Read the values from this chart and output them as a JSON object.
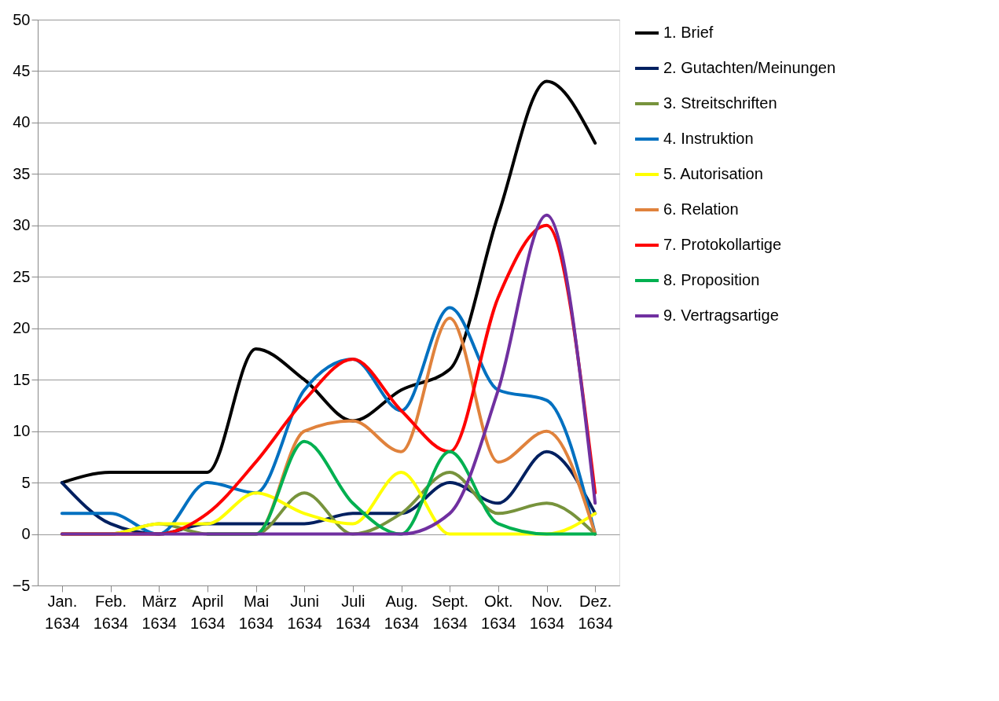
{
  "chart_data": {
    "type": "line",
    "categories": [
      "Jan. 1634",
      "Feb. 1634",
      "März 1634",
      "April 1634",
      "Mai 1634",
      "Juni 1634",
      "Juli 1634",
      "Aug. 1634",
      "Sept. 1634",
      "Okt. 1634",
      "Nov. 1634",
      "Dez. 1634"
    ],
    "series": [
      {
        "name": "1. Brief",
        "color": "#000000",
        "values": [
          5,
          6,
          6,
          6,
          18,
          15,
          11,
          14,
          16,
          31,
          44,
          38
        ]
      },
      {
        "name": "2. Gutachten/Meinungen",
        "color": "#002060",
        "values": [
          5,
          1,
          0,
          1,
          1,
          1,
          2,
          2,
          5,
          3,
          8,
          2
        ]
      },
      {
        "name": "3. Streitschriften",
        "color": "#77933c",
        "values": [
          0,
          0,
          1,
          0,
          0,
          4,
          0,
          2,
          6,
          2,
          3,
          0
        ]
      },
      {
        "name": "4. Instruktion",
        "color": "#0070c0",
        "values": [
          2,
          2,
          0,
          5,
          4,
          14,
          17,
          12,
          22,
          14,
          13,
          0
        ]
      },
      {
        "name": "5. Autorisation",
        "color": "#ffff00",
        "values": [
          0,
          0,
          1,
          1,
          4,
          2,
          1,
          6,
          0,
          0,
          0,
          2
        ]
      },
      {
        "name": "6. Relation",
        "color": "#e0823c",
        "values": [
          null,
          null,
          null,
          0,
          0,
          10,
          11,
          8,
          21,
          7,
          10,
          0
        ]
      },
      {
        "name": "7. Protokollartige",
        "color": "#ff0000",
        "values": [
          0,
          0,
          0,
          2,
          7,
          13,
          17,
          12,
          8,
          23,
          30,
          4
        ]
      },
      {
        "name": "8. Proposition",
        "color": "#00b050",
        "values": [
          null,
          null,
          null,
          0,
          0,
          9,
          3,
          0,
          8,
          1,
          0,
          0
        ]
      },
      {
        "name": "9. Vertragsartige",
        "color": "#7030a0",
        "values": [
          0,
          0,
          0,
          0,
          0,
          0,
          0,
          0,
          2,
          14,
          31,
          3
        ]
      }
    ],
    "ylim": [
      -5,
      50
    ],
    "yticks": [
      -5,
      0,
      5,
      10,
      15,
      20,
      25,
      30,
      35,
      40,
      45,
      50
    ],
    "grid": "y",
    "legend": "right"
  }
}
